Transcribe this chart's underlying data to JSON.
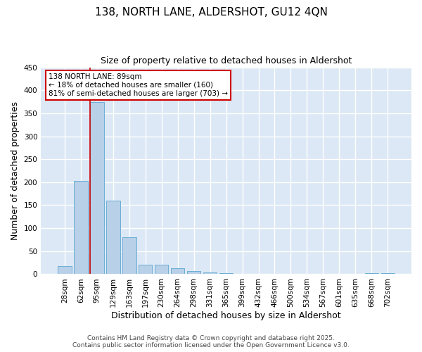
{
  "title_line1": "138, NORTH LANE, ALDERSHOT, GU12 4QN",
  "title_line2": "Size of property relative to detached houses in Aldershot",
  "xlabel": "Distribution of detached houses by size in Aldershot",
  "ylabel": "Number of detached properties",
  "categories": [
    "28sqm",
    "62sqm",
    "95sqm",
    "129sqm",
    "163sqm",
    "197sqm",
    "230sqm",
    "264sqm",
    "298sqm",
    "331sqm",
    "365sqm",
    "399sqm",
    "432sqm",
    "466sqm",
    "500sqm",
    "534sqm",
    "567sqm",
    "601sqm",
    "635sqm",
    "668sqm",
    "702sqm"
  ],
  "values": [
    18,
    203,
    375,
    160,
    80,
    20,
    20,
    13,
    7,
    4,
    2,
    0,
    0,
    0,
    0,
    0,
    0,
    0,
    0,
    2,
    2
  ],
  "bar_color": "#b8d0e8",
  "bar_edge_color": "#6baed6",
  "highlight_line_color": "#cc0000",
  "annotation_text": "138 NORTH LANE: 89sqm\n← 18% of detached houses are smaller (160)\n81% of semi-detached houses are larger (703) →",
  "annotation_box_facecolor": "#ffffff",
  "annotation_box_edgecolor": "#cc0000",
  "ylim": [
    0,
    450
  ],
  "yticks": [
    0,
    50,
    100,
    150,
    200,
    250,
    300,
    350,
    400,
    450
  ],
  "background_color": "#dce8f5",
  "grid_color": "#ffffff",
  "fig_background_color": "#ffffff",
  "footer_line1": "Contains HM Land Registry data © Crown copyright and database right 2025.",
  "footer_line2": "Contains public sector information licensed under the Open Government Licence v3.0.",
  "title_fontsize": 11,
  "subtitle_fontsize": 9,
  "axis_label_fontsize": 9,
  "tick_fontsize": 7.5,
  "annotation_fontsize": 7.5,
  "footer_fontsize": 6.5
}
